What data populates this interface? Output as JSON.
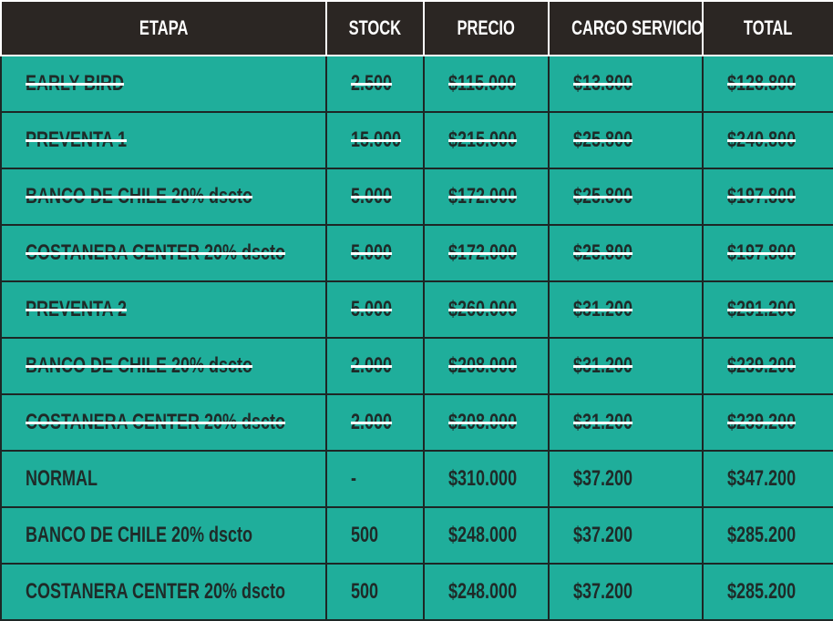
{
  "table": {
    "header": [
      "ETAPA",
      "STOCK",
      "PRECIO",
      "CARGO SERVICIO",
      "TOTAL"
    ],
    "rows": [
      {
        "cells": [
          "EARLY BIRD",
          "2.500",
          "$115.000",
          "$13.800",
          "$128.800"
        ],
        "struck": true
      },
      {
        "cells": [
          "PREVENTA 1",
          "15.000",
          "$215.000",
          "$25.800",
          "$240.800"
        ],
        "struck": true
      },
      {
        "cells": [
          "BANCO DE CHILE 20% dscto",
          "5.000",
          "$172.000",
          "$25.800",
          "$197.800"
        ],
        "struck": true
      },
      {
        "cells": [
          "COSTANERA CENTER 20% dscto",
          "5.000",
          "$172.000",
          "$25.800",
          "$197.800"
        ],
        "struck": true
      },
      {
        "cells": [
          "PREVENTA 2",
          "5.000",
          "$260.000",
          "$31.200",
          "$291.200"
        ],
        "struck": true
      },
      {
        "cells": [
          "BANCO DE CHILE 20% dscto",
          "2.000",
          "$208.000",
          "$31.200",
          "$239.200"
        ],
        "struck": true
      },
      {
        "cells": [
          "COSTANERA CENTER 20% dscto",
          "2.000",
          "$208.000",
          "$31.200",
          "$239.200"
        ],
        "struck": true
      },
      {
        "cells": [
          "NORMAL",
          "-",
          "$310.000",
          "$37.200",
          "$347.200"
        ],
        "struck": false
      },
      {
        "cells": [
          "BANCO DE CHILE 20% dscto",
          "500",
          "$248.000",
          "$37.200",
          "$285.200"
        ],
        "struck": false
      },
      {
        "cells": [
          "COSTANERA CENTER 20% dscto",
          "500",
          "$248.000",
          "$37.200",
          "$285.200"
        ],
        "struck": false
      }
    ]
  }
}
